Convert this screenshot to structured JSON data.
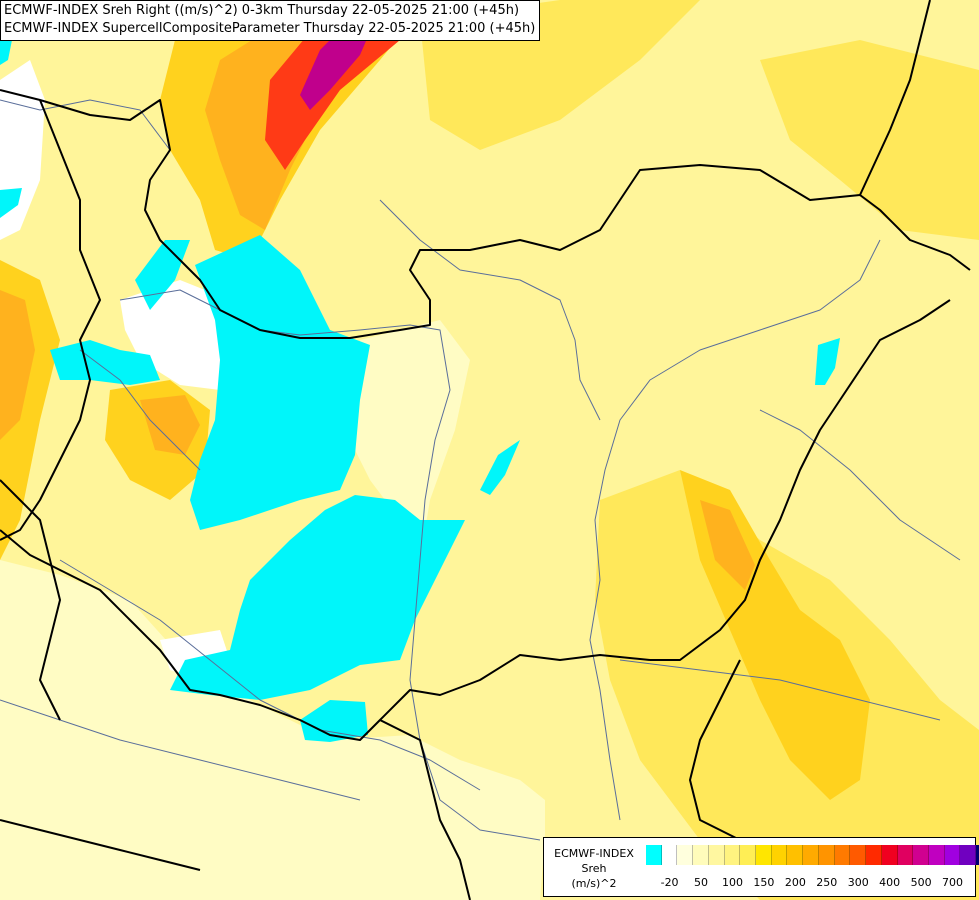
{
  "header": {
    "line1": "ECMWF-INDEX Sreh Right ((m/s)^2) 0-3km Thursday 22-05-2025 21:00 (+45h)",
    "line2": "ECMWF-INDEX SupercellCompositeParameter Thursday 22-05-2025 21:00 (+45h)"
  },
  "legend": {
    "line1": "ECMWF-INDEX",
    "line2": "Sreh",
    "line3": "(m/s)^2",
    "colors": [
      "#00ffff",
      "#ffffff",
      "#ffffdd",
      "#fffcbb",
      "#fff7a0",
      "#fff380",
      "#ffee55",
      "#ffe600",
      "#ffd200",
      "#ffc000",
      "#ffaa00",
      "#ff9400",
      "#ff7a00",
      "#ff5a00",
      "#ff2a00",
      "#f00020",
      "#e00060",
      "#d00090",
      "#c000c0",
      "#a000e0",
      "#7000c0",
      "#000070"
    ],
    "ticks": [
      "-20",
      "50",
      "100",
      "150",
      "200",
      "250",
      "300",
      "400",
      "500",
      "700"
    ]
  },
  "map": {
    "colors": {
      "base": "#fff59a",
      "pale": "#fffcc4",
      "light": "#fff49a",
      "mid": "#ffe85a",
      "strong": "#ffd21e",
      "orange": "#ffb21e",
      "deep_orange": "#ff8c1a",
      "red": "#ff3a16",
      "magenta": "#c0008c",
      "cyan": "#00f6fa",
      "white": "#ffffff",
      "border": "#000000",
      "river": "#5a6e9a"
    }
  }
}
